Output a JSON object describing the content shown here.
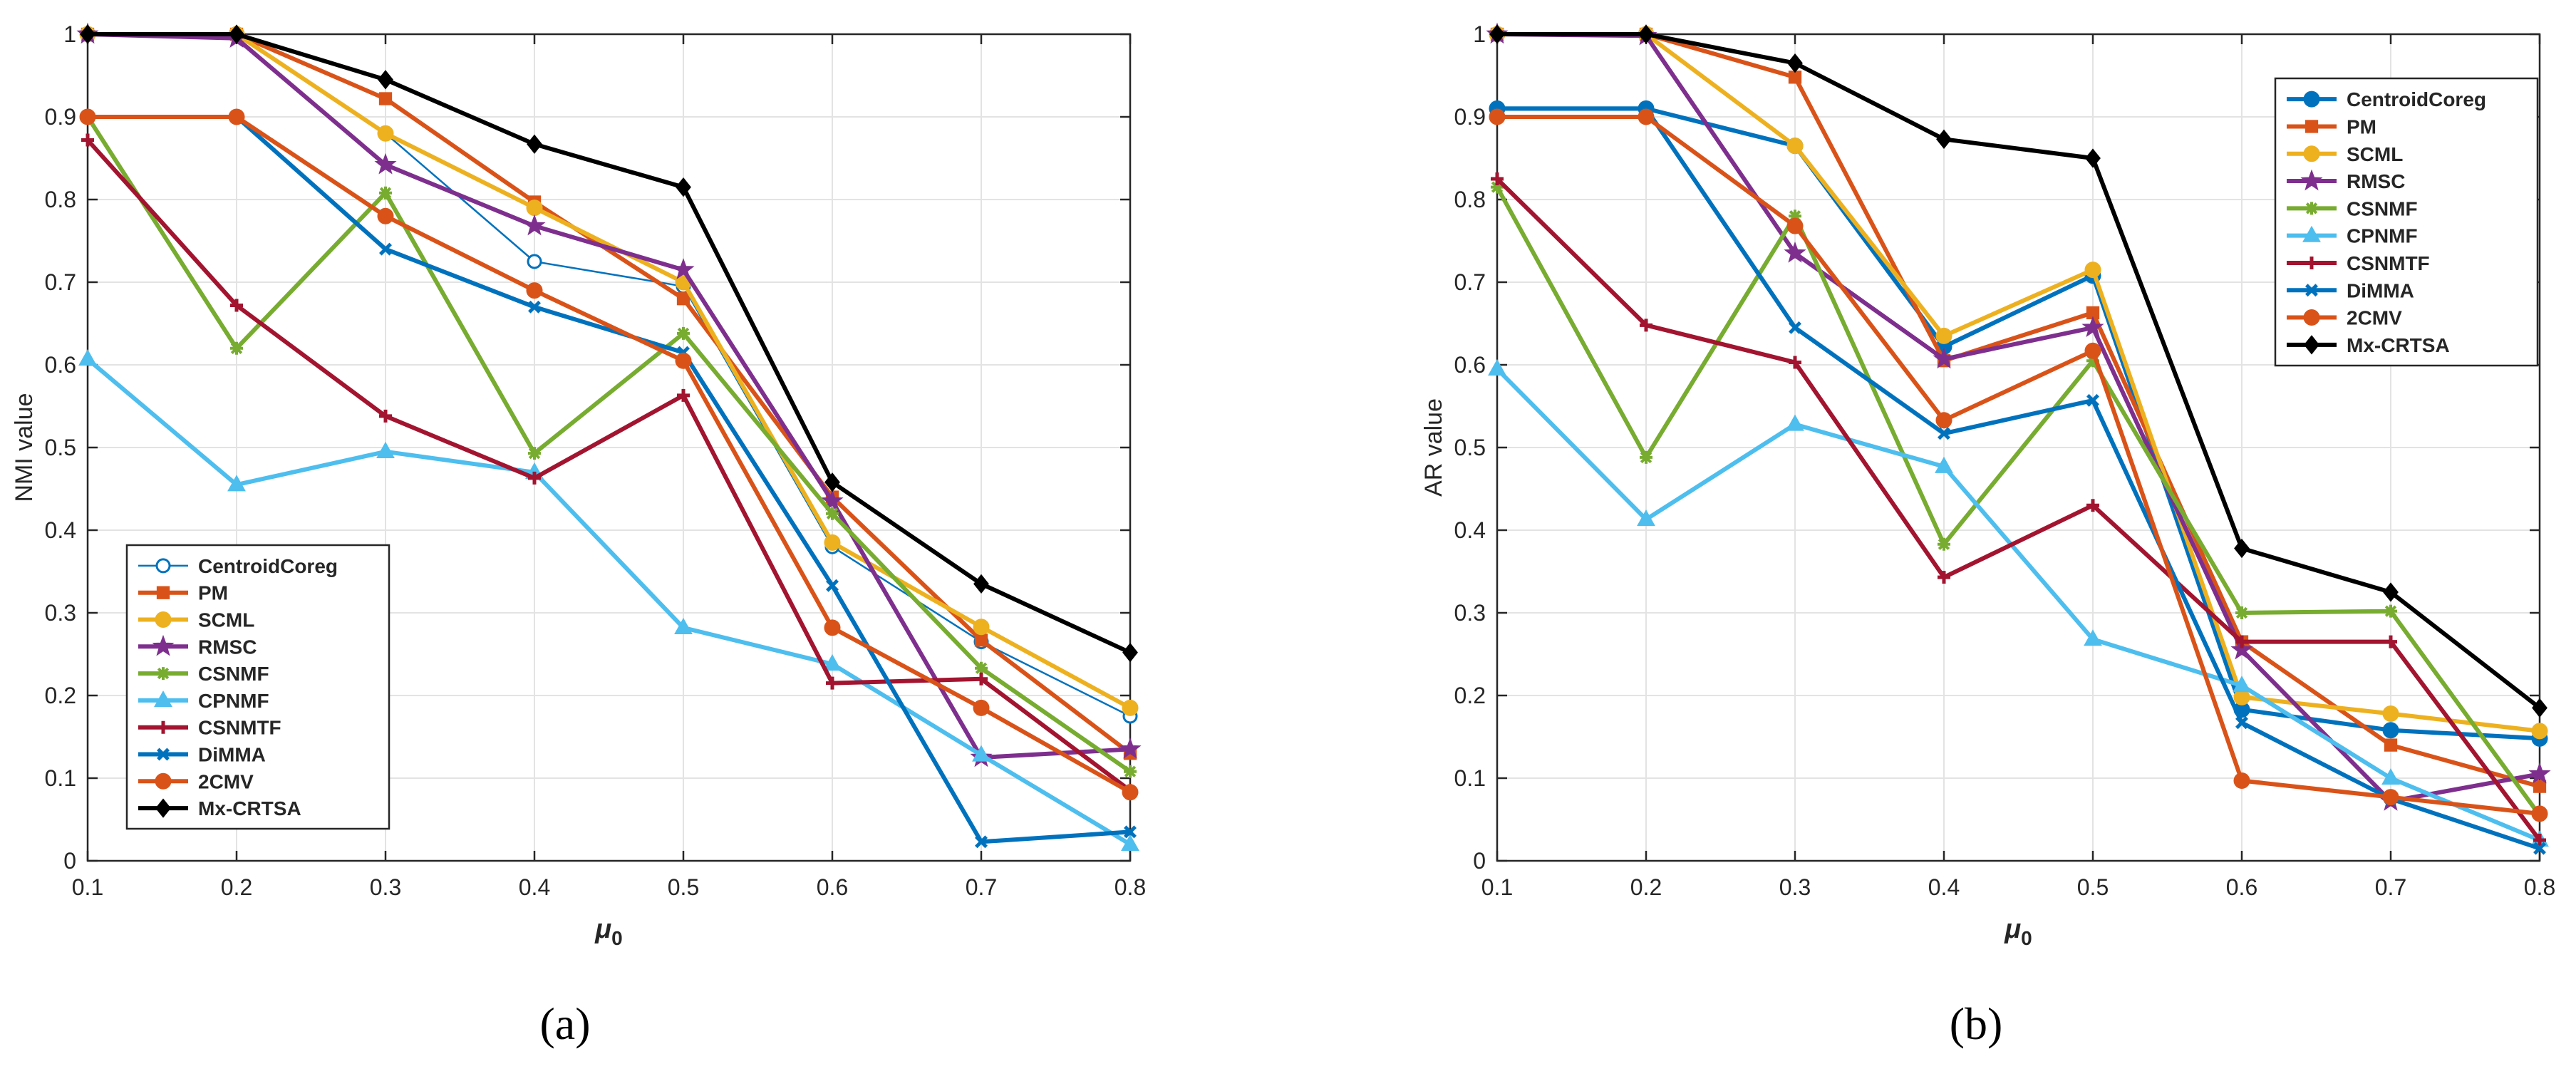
{
  "figure": {
    "panels": [
      {
        "caption": "(a)"
      },
      {
        "caption": "(b)"
      }
    ]
  },
  "chart_data": [
    {
      "type": "line",
      "xlabel": "μ0",
      "ylabel": "NMI value",
      "grid": true,
      "xlim": [
        0.1,
        0.8
      ],
      "ylim": [
        0,
        1
      ],
      "xticks": [
        "0.1",
        "0.2",
        "0.3",
        "0.4",
        "0.5",
        "0.6",
        "0.7",
        "0.8"
      ],
      "yticks": [
        "0",
        "0.1",
        "0.2",
        "0.3",
        "0.4",
        "0.5",
        "0.6",
        "0.7",
        "0.8",
        "0.9",
        "1"
      ],
      "legend_position": "bottom-left",
      "x": [
        0.1,
        0.2,
        0.3,
        0.4,
        0.5,
        0.6,
        0.7,
        0.8
      ],
      "series": [
        {
          "name": "CentroidCoreg",
          "color": "#0072BD",
          "marker": "circle-open",
          "line": "thin",
          "values": [
            1.0,
            1.0,
            0.88,
            0.725,
            0.695,
            0.38,
            0.265,
            0.175
          ]
        },
        {
          "name": "PM",
          "color": "#D95319",
          "marker": "square",
          "values": [
            1.0,
            1.0,
            0.922,
            0.797,
            0.68,
            0.44,
            0.267,
            0.13
          ]
        },
        {
          "name": "SCML",
          "color": "#EDB120",
          "marker": "circle",
          "values": [
            1.0,
            1.0,
            0.88,
            0.79,
            0.7,
            0.385,
            0.283,
            0.185
          ]
        },
        {
          "name": "RMSC",
          "color": "#7E2F8E",
          "marker": "star",
          "values": [
            1.0,
            0.995,
            0.842,
            0.768,
            0.715,
            0.435,
            0.125,
            0.135
          ]
        },
        {
          "name": "CSNMF",
          "color": "#77AC30",
          "marker": "asterisk",
          "values": [
            0.9,
            0.62,
            0.808,
            0.493,
            0.638,
            0.42,
            0.233,
            0.108
          ]
        },
        {
          "name": "CPNMF",
          "color": "#4DBEEE",
          "marker": "triangle",
          "values": [
            0.607,
            0.455,
            0.495,
            0.47,
            0.282,
            0.238,
            0.128,
            0.02
          ]
        },
        {
          "name": "CSNMTF",
          "color": "#A2142F",
          "marker": "plus",
          "values": [
            0.872,
            0.672,
            0.538,
            0.463,
            0.563,
            0.215,
            0.22,
            0.085
          ]
        },
        {
          "name": "DiMMA",
          "color": "#0072BD",
          "marker": "x",
          "values": [
            0.9,
            0.9,
            0.74,
            0.67,
            0.615,
            0.333,
            0.023,
            0.035
          ]
        },
        {
          "name": "2CMV",
          "color": "#D95319",
          "marker": "circle",
          "values": [
            0.9,
            0.9,
            0.78,
            0.69,
            0.605,
            0.282,
            0.185,
            0.083
          ]
        },
        {
          "name": "Mx-CRTSA",
          "color": "#000000",
          "marker": "diamond",
          "values": [
            1.0,
            1.0,
            0.945,
            0.867,
            0.815,
            0.458,
            0.335,
            0.252
          ]
        }
      ]
    },
    {
      "type": "line",
      "xlabel": "μ0",
      "ylabel": "AR value",
      "grid": true,
      "xlim": [
        0.1,
        0.8
      ],
      "ylim": [
        0,
        1
      ],
      "xticks": [
        "0.1",
        "0.2",
        "0.3",
        "0.4",
        "0.5",
        "0.6",
        "0.7",
        "0.8"
      ],
      "yticks": [
        "0",
        "0.1",
        "0.2",
        "0.3",
        "0.4",
        "0.5",
        "0.6",
        "0.7",
        "0.8",
        "0.9",
        "1"
      ],
      "legend_position": "top-right",
      "x": [
        0.1,
        0.2,
        0.3,
        0.4,
        0.5,
        0.6,
        0.7,
        0.8
      ],
      "series": [
        {
          "name": "CentroidCoreg",
          "color": "#0072BD",
          "marker": "circle",
          "values": [
            0.91,
            0.91,
            0.865,
            0.622,
            0.708,
            0.183,
            0.158,
            0.148
          ]
        },
        {
          "name": "PM",
          "color": "#D95319",
          "marker": "square",
          "values": [
            1.0,
            1.0,
            0.948,
            0.605,
            0.663,
            0.265,
            0.14,
            0.09
          ]
        },
        {
          "name": "SCML",
          "color": "#EDB120",
          "marker": "circle",
          "values": [
            1.0,
            1.0,
            0.865,
            0.635,
            0.715,
            0.198,
            0.178,
            0.157
          ]
        },
        {
          "name": "RMSC",
          "color": "#7E2F8E",
          "marker": "star",
          "values": [
            1.0,
            0.998,
            0.735,
            0.607,
            0.645,
            0.255,
            0.072,
            0.105
          ]
        },
        {
          "name": "CSNMF",
          "color": "#77AC30",
          "marker": "asterisk",
          "values": [
            0.815,
            0.488,
            0.78,
            0.383,
            0.605,
            0.3,
            0.302,
            0.055
          ]
        },
        {
          "name": "CPNMF",
          "color": "#4DBEEE",
          "marker": "triangle",
          "values": [
            0.595,
            0.413,
            0.528,
            0.477,
            0.268,
            0.212,
            0.1,
            0.025
          ]
        },
        {
          "name": "CSNMTF",
          "color": "#A2142F",
          "marker": "plus",
          "values": [
            0.825,
            0.648,
            0.603,
            0.343,
            0.43,
            0.265,
            0.265,
            0.025
          ]
        },
        {
          "name": "DiMMA",
          "color": "#0072BD",
          "marker": "x",
          "values": [
            0.91,
            0.91,
            0.645,
            0.517,
            0.557,
            0.167,
            0.075,
            0.015
          ]
        },
        {
          "name": "2CMV",
          "color": "#D95319",
          "marker": "circle",
          "values": [
            0.9,
            0.9,
            0.768,
            0.533,
            0.617,
            0.097,
            0.077,
            0.057
          ]
        },
        {
          "name": "Mx-CRTSA",
          "color": "#000000",
          "marker": "diamond",
          "values": [
            1.0,
            1.0,
            0.965,
            0.873,
            0.85,
            0.378,
            0.325,
            0.185
          ]
        }
      ]
    }
  ]
}
